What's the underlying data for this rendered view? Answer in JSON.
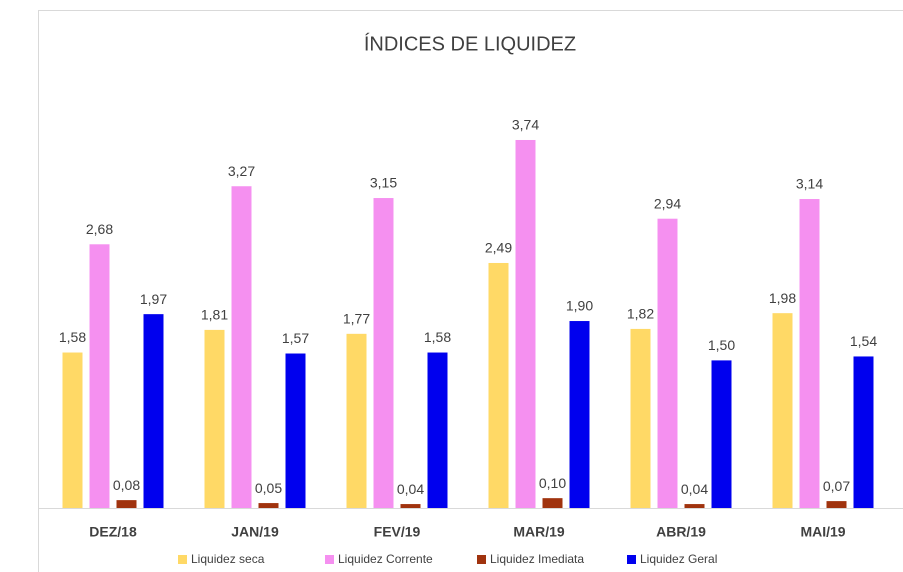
{
  "chart_data": {
    "type": "bar",
    "title": "ÍNDICES DE LIQUIDEZ",
    "categories": [
      "DEZ/18",
      "JAN/19",
      "FEV/19",
      "MAR/19",
      "ABR/19",
      "MAI/19"
    ],
    "series": [
      {
        "name": "Liquidez seca",
        "color": "#FFD966",
        "values": [
          1.58,
          1.81,
          1.77,
          2.49,
          1.82,
          1.98
        ],
        "value_labels": [
          "1,58",
          "1,81",
          "1,77",
          "2,49",
          "1,82",
          "1,98"
        ]
      },
      {
        "name": "Liquidez Corrente",
        "color": "#F590F0",
        "values": [
          2.68,
          3.27,
          3.15,
          3.74,
          2.94,
          3.14
        ],
        "value_labels": [
          "2,68",
          "3,27",
          "3,15",
          "3,74",
          "2,94",
          "3,14"
        ]
      },
      {
        "name": "Liquidez Imediata",
        "color": "#A0330E",
        "values": [
          0.08,
          0.05,
          0.04,
          0.1,
          0.04,
          0.07
        ],
        "value_labels": [
          "0,08",
          "0,05",
          "0,04",
          "0,10",
          "0,04",
          "0,07"
        ]
      },
      {
        "name": "Liquidez Geral",
        "color": "#0000EE",
        "values": [
          1.97,
          1.57,
          1.58,
          1.9,
          1.5,
          1.54
        ],
        "value_labels": [
          "1,97",
          "1,57",
          "1,58",
          "1,90",
          "1,50",
          "1,54"
        ]
      }
    ]
  }
}
